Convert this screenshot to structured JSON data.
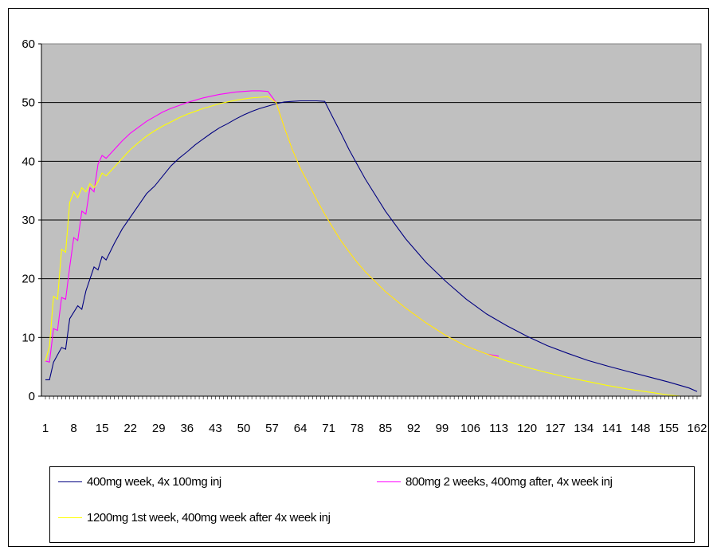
{
  "chart_data": {
    "type": "line",
    "title": "",
    "xlabel": "",
    "ylabel": "",
    "xlim": [
      1,
      162
    ],
    "ylim": [
      0,
      60
    ],
    "y_ticks": [
      0,
      10,
      20,
      30,
      40,
      50,
      60
    ],
    "x_tick_labels": [
      "1",
      "8",
      "15",
      "22",
      "29",
      "36",
      "43",
      "50",
      "57",
      "64",
      "71",
      "78",
      "85",
      "92",
      "99",
      "106",
      "113",
      "120",
      "127",
      "134",
      "141",
      "148",
      "155",
      "162"
    ],
    "grid": "horizontal",
    "plot_background": "#C0C0C0",
    "legend_position": "bottom",
    "series": [
      {
        "name": "400mg week, 4x 100mg inj",
        "color": "#000080",
        "x": [
          1,
          2,
          3,
          5,
          6,
          7,
          9,
          10,
          11,
          13,
          14,
          15,
          16,
          18,
          20,
          22,
          24,
          26,
          28,
          30,
          32,
          34,
          36,
          38,
          40,
          42,
          44,
          46,
          48,
          50,
          52,
          54,
          56,
          58,
          60,
          62,
          64,
          66,
          68,
          70,
          72,
          74,
          76,
          78,
          80,
          85,
          90,
          95,
          100,
          105,
          110,
          115,
          120,
          125,
          130,
          135,
          140,
          145,
          150,
          155,
          160,
          162
        ],
        "y": [
          2.8,
          2.8,
          5.8,
          8.3,
          8.0,
          13.2,
          15.4,
          14.8,
          17.9,
          22.0,
          21.5,
          23.8,
          23.2,
          26.0,
          28.5,
          30.5,
          32.5,
          34.5,
          35.8,
          37.5,
          39.2,
          40.5,
          41.6,
          42.8,
          43.8,
          44.8,
          45.7,
          46.4,
          47.2,
          47.9,
          48.5,
          49.0,
          49.4,
          49.8,
          50.1,
          50.2,
          50.3,
          50.3,
          50.3,
          50.2,
          47.5,
          44.8,
          42.0,
          39.5,
          37.0,
          31.5,
          26.8,
          22.8,
          19.5,
          16.5,
          14.0,
          12.0,
          10.2,
          8.6,
          7.3,
          6.1,
          5.1,
          4.2,
          3.3,
          2.4,
          1.4,
          0.8
        ]
      },
      {
        "name": "800mg 2 weeks, 400mg after, 4x week inj",
        "color": "#FF00FF",
        "x": [
          1,
          2,
          3,
          4,
          5,
          6,
          7,
          8,
          9,
          10,
          11,
          12,
          13,
          14,
          15,
          16,
          18,
          20,
          22,
          24,
          26,
          28,
          30,
          32,
          34,
          36,
          38,
          40,
          42,
          44,
          46,
          48,
          50,
          52,
          54,
          56,
          58,
          60,
          62,
          64,
          66,
          68,
          70,
          72,
          74,
          76,
          78,
          80,
          85,
          90,
          95,
          100,
          105,
          110,
          113
        ],
        "y": [
          6.0,
          5.8,
          11.5,
          11.2,
          16.8,
          16.5,
          22.0,
          27.0,
          26.5,
          31.5,
          31.0,
          35.5,
          34.8,
          39.5,
          41.0,
          40.5,
          42.0,
          43.5,
          44.8,
          45.8,
          46.8,
          47.6,
          48.4,
          49.0,
          49.5,
          50.0,
          50.4,
          50.8,
          51.1,
          51.4,
          51.6,
          51.8,
          51.9,
          52.0,
          52.0,
          51.9,
          50.0,
          45.8,
          42.0,
          38.8,
          36.2,
          33.5,
          31.0,
          28.7,
          26.5,
          24.6,
          22.8,
          21.2,
          17.8,
          15.0,
          12.5,
          10.3,
          8.5,
          7.2,
          6.8
        ]
      },
      {
        "name": "1200mg 1st week, 400mg week after 4x week inj",
        "color": "#FFFF00",
        "x": [
          1,
          2,
          3,
          4,
          5,
          6,
          7,
          8,
          9,
          10,
          11,
          12,
          13,
          14,
          15,
          16,
          18,
          20,
          22,
          24,
          26,
          28,
          30,
          32,
          34,
          36,
          38,
          40,
          42,
          44,
          46,
          48,
          50,
          52,
          54,
          56,
          58,
          60,
          62,
          64,
          66,
          68,
          70,
          72,
          74,
          76,
          78,
          80,
          85,
          90,
          95,
          100,
          105,
          110,
          115,
          120,
          125,
          130,
          135,
          140,
          145,
          150,
          155,
          158
        ],
        "y": [
          6.0,
          8.5,
          17.0,
          16.5,
          25.0,
          24.5,
          33.0,
          34.8,
          33.8,
          35.5,
          34.8,
          36.2,
          35.5,
          36.5,
          38.0,
          37.5,
          39.0,
          40.5,
          42.0,
          43.2,
          44.3,
          45.2,
          46.0,
          46.7,
          47.4,
          48.0,
          48.5,
          49.0,
          49.4,
          49.8,
          50.1,
          50.4,
          50.6,
          50.8,
          50.9,
          51.0,
          50.0,
          45.8,
          42.0,
          38.8,
          36.2,
          33.5,
          31.0,
          28.7,
          26.5,
          24.6,
          22.8,
          21.2,
          17.8,
          15.0,
          12.5,
          10.3,
          8.5,
          7.2,
          6.0,
          4.9,
          4.0,
          3.2,
          2.5,
          1.8,
          1.2,
          0.7,
          0.2,
          0.0
        ]
      }
    ]
  }
}
